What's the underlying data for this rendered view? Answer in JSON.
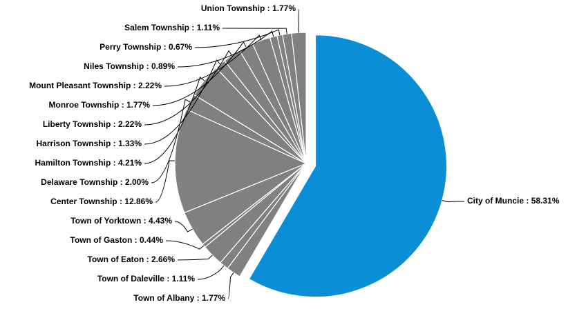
{
  "chart_data": {
    "type": "pie",
    "categories": [
      "City of Muncie",
      "Town of Albany",
      "Town of Daleville",
      "Town of Eaton",
      "Town of Gaston",
      "Town of Yorktown",
      "Center Township",
      "Delaware Township",
      "Hamilton Township",
      "Harrison Township",
      "Liberty Township",
      "Monroe Township",
      "Mount Pleasant Township",
      "Niles Township",
      "Perry Township",
      "Salem Township",
      "Union Township"
    ],
    "values": [
      58.31,
      1.77,
      1.11,
      2.66,
      0.44,
      4.43,
      12.86,
      2.0,
      4.21,
      1.33,
      2.22,
      1.77,
      2.22,
      0.89,
      0.67,
      1.11,
      1.77
    ],
    "value_labels": [
      "58.31%",
      "1.77%",
      "1.11%",
      "2.66%",
      "0.44%",
      "4.43%",
      "12.86%",
      "2.00%",
      "4.21%",
      "1.33%",
      "2.22%",
      "1.77%",
      "2.22%",
      "0.89%",
      "0.67%",
      "1.11%",
      "1.77%"
    ],
    "label_separator": " : ",
    "colors": [
      "#0a8fd6",
      "#808080",
      "#808080",
      "#808080",
      "#808080",
      "#808080",
      "#808080",
      "#808080",
      "#808080",
      "#808080",
      "#808080",
      "#808080",
      "#808080",
      "#808080",
      "#808080",
      "#808080",
      "#808080"
    ]
  }
}
